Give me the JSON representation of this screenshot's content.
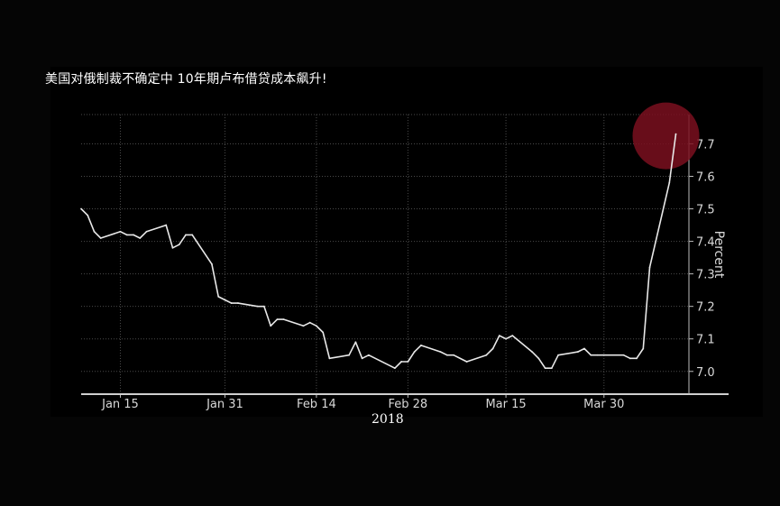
{
  "title": "美国对俄制裁不确定中 10年期卢布借贷成本飙升!",
  "year_label": "2018",
  "colors": {
    "background": "#000000",
    "line": "#e8e8e8",
    "grid": "#4a4a4a",
    "highlight": "#7a0f1e"
  },
  "chart_data": {
    "type": "line",
    "ylabel": "Percent",
    "ylim": [
      6.93,
      7.79
    ],
    "yticks": [
      7.0,
      7.1,
      7.2,
      7.3,
      7.4,
      7.5,
      7.6,
      7.7
    ],
    "ytick_labels": [
      "7.0",
      "7.1",
      "7.2",
      "7.3",
      "7.4",
      "7.5",
      "7.6",
      "7.7"
    ],
    "xlim": [
      "2018-01-09",
      "2018-04-12"
    ],
    "xticks": [
      "2018-01-15",
      "2018-01-31",
      "2018-02-14",
      "2018-02-28",
      "2018-03-15",
      "2018-03-30"
    ],
    "xtick_labels": [
      "Jan 15",
      "Jan 31",
      "Feb 14",
      "Feb 28",
      "Mar 15",
      "Mar 30"
    ],
    "grid": true,
    "y_axis_position": "right",
    "series": [
      {
        "x": [
          "2018-01-09",
          "2018-01-10",
          "2018-01-11",
          "2018-01-12",
          "2018-01-15",
          "2018-01-16",
          "2018-01-17",
          "2018-01-18",
          "2018-01-19",
          "2018-01-22",
          "2018-01-23",
          "2018-01-24",
          "2018-01-25",
          "2018-01-26",
          "2018-01-29",
          "2018-01-30",
          "2018-01-31",
          "2018-02-01",
          "2018-02-02",
          "2018-02-05",
          "2018-02-06",
          "2018-02-07",
          "2018-02-08",
          "2018-02-09",
          "2018-02-12",
          "2018-02-13",
          "2018-02-14",
          "2018-02-15",
          "2018-02-16",
          "2018-02-19",
          "2018-02-20",
          "2018-02-21",
          "2018-02-22",
          "2018-02-26",
          "2018-02-27",
          "2018-02-28",
          "2018-03-01",
          "2018-03-02",
          "2018-03-05",
          "2018-03-06",
          "2018-03-07",
          "2018-03-09",
          "2018-03-12",
          "2018-03-13",
          "2018-03-14",
          "2018-03-15",
          "2018-03-16",
          "2018-03-19",
          "2018-03-20",
          "2018-03-21",
          "2018-03-22",
          "2018-03-23",
          "2018-03-26",
          "2018-03-27",
          "2018-03-28",
          "2018-03-29",
          "2018-03-30",
          "2018-04-02",
          "2018-04-03",
          "2018-04-04",
          "2018-04-05",
          "2018-04-06",
          "2018-04-09",
          "2018-04-10"
        ],
        "values": [
          7.5,
          7.48,
          7.43,
          7.41,
          7.43,
          7.42,
          7.42,
          7.41,
          7.43,
          7.45,
          7.38,
          7.39,
          7.42,
          7.42,
          7.33,
          7.23,
          7.22,
          7.21,
          7.21,
          7.2,
          7.2,
          7.14,
          7.16,
          7.16,
          7.14,
          7.15,
          7.14,
          7.12,
          7.04,
          7.05,
          7.09,
          7.04,
          7.05,
          7.01,
          7.03,
          7.03,
          7.06,
          7.08,
          7.06,
          7.05,
          7.05,
          7.03,
          7.05,
          7.07,
          7.11,
          7.1,
          7.11,
          7.06,
          7.04,
          7.01,
          7.01,
          7.05,
          7.06,
          7.07,
          7.05,
          7.05,
          7.05,
          7.05,
          7.04,
          7.04,
          7.07,
          7.32,
          7.58,
          7.73
        ]
      }
    ],
    "annotations": [
      {
        "type": "circle-highlight",
        "x": "2018-04-10",
        "y": 7.73
      }
    ]
  }
}
